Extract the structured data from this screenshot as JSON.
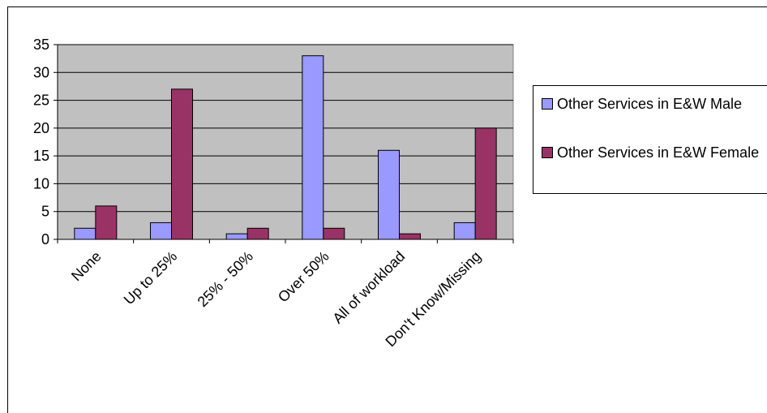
{
  "chart_data": {
    "type": "bar",
    "title": "",
    "xlabel": "",
    "ylabel": "",
    "categories": [
      "None",
      "Up to 25%",
      "25% - 50%",
      "Over 50%",
      "All of workload",
      "Don't Know/Missing"
    ],
    "series": [
      {
        "name": "Other Services in E&W Male",
        "values": [
          2,
          3,
          1,
          33,
          16,
          3
        ],
        "color": "#9999ff"
      },
      {
        "name": "Other Services in E&W Female",
        "values": [
          6,
          27,
          2,
          2,
          1,
          20
        ],
        "color": "#993366"
      }
    ],
    "ylim": [
      0,
      35
    ],
    "yticks": [
      "0",
      "5",
      "10",
      "15",
      "20",
      "25",
      "30",
      "35"
    ],
    "grid": true,
    "legend_position": "right",
    "plot_background": "#c0c0c0"
  }
}
